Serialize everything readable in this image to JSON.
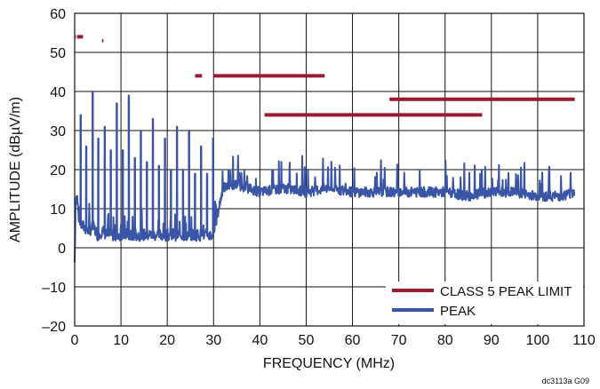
{
  "chart_data": {
    "type": "line",
    "title": "",
    "xlabel": "FREQUENCY (MHz)",
    "ylabel": "AMPLITUDE (dBµV/m)",
    "xlim": [
      0,
      110
    ],
    "ylim": [
      -20,
      60
    ],
    "x_ticks": [
      0,
      10,
      20,
      30,
      40,
      50,
      60,
      70,
      80,
      90,
      100,
      110
    ],
    "y_ticks": [
      -20,
      -10,
      0,
      10,
      20,
      30,
      40,
      50,
      60
    ],
    "x_tick_labels": [
      "0",
      "10",
      "20",
      "30",
      "40",
      "50",
      "60",
      "70",
      "80",
      "90",
      "100",
      "110"
    ],
    "y_tick_labels": [
      "–20",
      "–10",
      "0",
      "10",
      "20",
      "30",
      "40",
      "50",
      "60"
    ],
    "grid": true,
    "legend_position": "bottom-right",
    "series": [
      {
        "name": "CLASS 5 PEAK LIMIT",
        "color": "#9a1b2f",
        "segments": [
          {
            "x": [
              0.15,
              0.3
            ],
            "y": [
              54,
              54
            ]
          },
          {
            "x": [
              0.53,
              1.8
            ],
            "y": [
              54,
              54
            ]
          },
          {
            "x": [
              5.9,
              6.2
            ],
            "y": [
              53,
              53
            ]
          },
          {
            "x": [
              26,
              27.5
            ],
            "y": [
              44,
              44
            ]
          },
          {
            "x": [
              30,
              54
            ],
            "y": [
              44,
              44
            ]
          },
          {
            "x": [
              41,
              88
            ],
            "y": [
              34,
              34
            ]
          },
          {
            "x": [
              68,
              108
            ],
            "y": [
              38,
              38
            ]
          }
        ]
      },
      {
        "name": "PEAK",
        "color": "#3a55a6",
        "x": [
          0,
          0.2,
          0.5,
          1,
          2,
          3,
          4,
          5,
          6,
          7,
          8,
          9,
          10,
          11,
          12,
          13,
          14,
          15,
          16,
          17,
          18,
          19,
          20,
          21,
          22,
          23,
          24,
          25,
          26,
          27,
          28,
          29,
          30,
          32,
          35,
          40,
          45,
          50,
          55,
          60,
          65,
          70,
          75,
          80,
          85,
          90,
          95,
          100,
          105,
          108
        ],
        "y": [
          -4,
          12,
          13,
          6,
          5,
          4,
          5,
          3,
          4,
          3,
          3,
          3,
          3,
          3,
          3,
          3,
          3,
          3,
          3,
          3,
          3,
          3,
          3,
          3,
          3,
          3,
          3,
          3,
          3,
          3,
          3,
          3,
          3,
          15,
          16,
          14,
          15,
          14,
          15,
          14,
          14,
          14,
          14,
          14,
          13,
          14,
          14,
          13,
          13,
          14
        ],
        "peaks": [
          {
            "x": 1.3,
            "y": 34
          },
          {
            "x": 2.5,
            "y": 26
          },
          {
            "x": 3.9,
            "y": 40
          },
          {
            "x": 5.1,
            "y": 28
          },
          {
            "x": 6.5,
            "y": 31
          },
          {
            "x": 7.8,
            "y": 25
          },
          {
            "x": 9.1,
            "y": 37
          },
          {
            "x": 10.4,
            "y": 25
          },
          {
            "x": 11.7,
            "y": 39
          },
          {
            "x": 13,
            "y": 23
          },
          {
            "x": 14.3,
            "y": 30
          },
          {
            "x": 15.6,
            "y": 22
          },
          {
            "x": 16.9,
            "y": 33
          },
          {
            "x": 18.2,
            "y": 21
          },
          {
            "x": 19.5,
            "y": 28
          },
          {
            "x": 20.8,
            "y": 20
          },
          {
            "x": 22.1,
            "y": 31
          },
          {
            "x": 23.4,
            "y": 20
          },
          {
            "x": 24.7,
            "y": 30
          },
          {
            "x": 26,
            "y": 19
          },
          {
            "x": 27.3,
            "y": 26
          },
          {
            "x": 28.6,
            "y": 19
          },
          {
            "x": 29.9,
            "y": 28
          }
        ]
      }
    ],
    "annotations": [
      "dc3113a G09"
    ]
  }
}
